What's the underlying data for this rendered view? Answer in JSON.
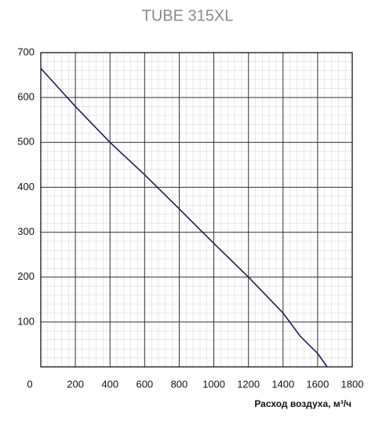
{
  "chart_data": {
    "type": "line",
    "title": "TUBE 315XL",
    "x_label": "Расход воздуха, м³/ч",
    "x": [
      0,
      200,
      400,
      600,
      800,
      1000,
      1200,
      1400,
      1500,
      1600,
      1655
    ],
    "series": [
      {
        "name": null,
        "color": "#1c1c5c",
        "values": [
          665,
          580,
          500,
          428,
          352,
          275,
          200,
          120,
          68,
          30,
          0
        ]
      }
    ],
    "xlim": [
      0,
      1800
    ],
    "xticks": [
      0,
      200,
      400,
      600,
      800,
      1000,
      1200,
      1400,
      1600,
      1800
    ],
    "ylim": [
      0,
      700
    ],
    "yticks": [
      100,
      200,
      300,
      400,
      500,
      600,
      700
    ],
    "grid": true,
    "minor_grid_divisions": 5
  }
}
